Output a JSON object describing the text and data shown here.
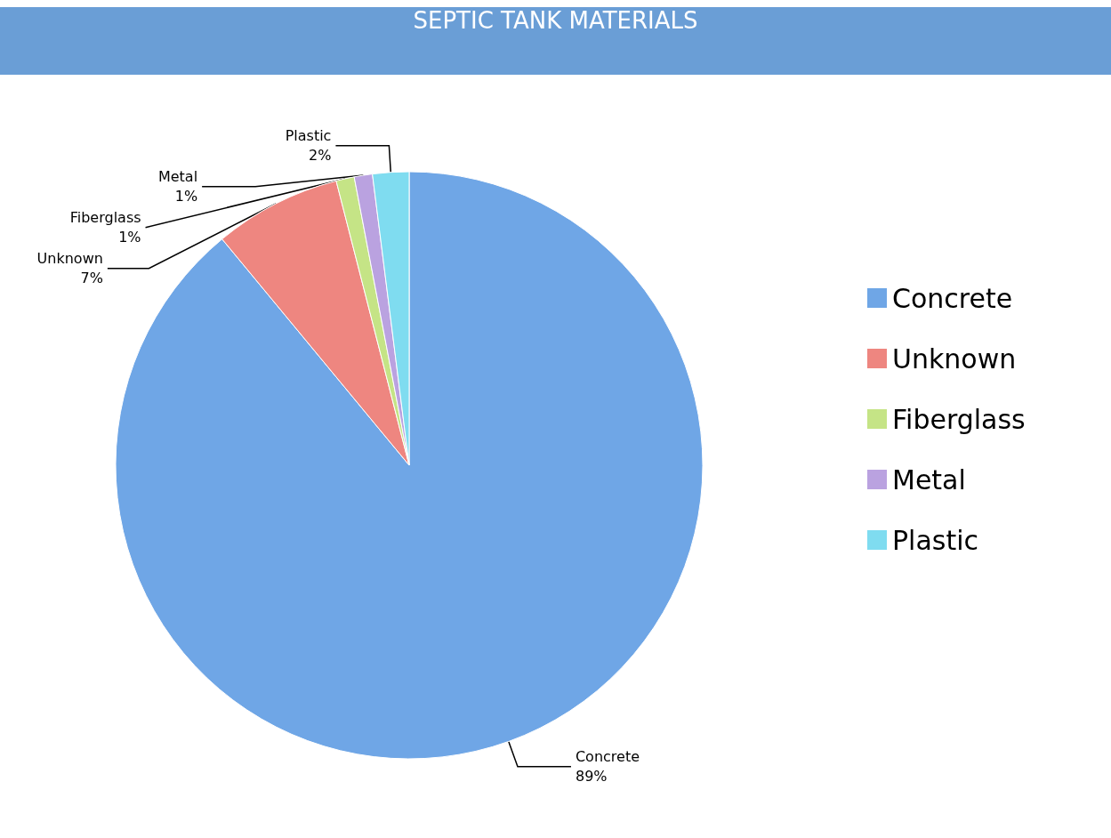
{
  "chart_data": {
    "type": "pie",
    "title": "SEPTIC TANK MATERIALS",
    "categories": [
      "Concrete",
      "Unknown",
      "Fiberglass",
      "Metal",
      "Plastic"
    ],
    "values": [
      89,
      7,
      1,
      1,
      2
    ],
    "colors": [
      "#6fa6e6",
      "#ee8680",
      "#c5e486",
      "#baa2e0",
      "#7fdcf0"
    ],
    "value_labels": [
      "89%",
      "7%",
      "1%",
      "1%",
      "2%"
    ],
    "legend": "right"
  }
}
